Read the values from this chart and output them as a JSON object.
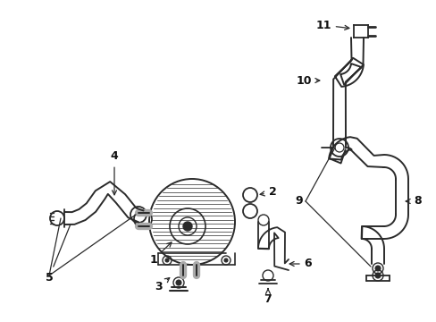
{
  "background_color": "#ffffff",
  "line_color": "#2a2a2a",
  "label_color": "#111111",
  "fig_width": 4.89,
  "fig_height": 3.6,
  "dpi": 100
}
